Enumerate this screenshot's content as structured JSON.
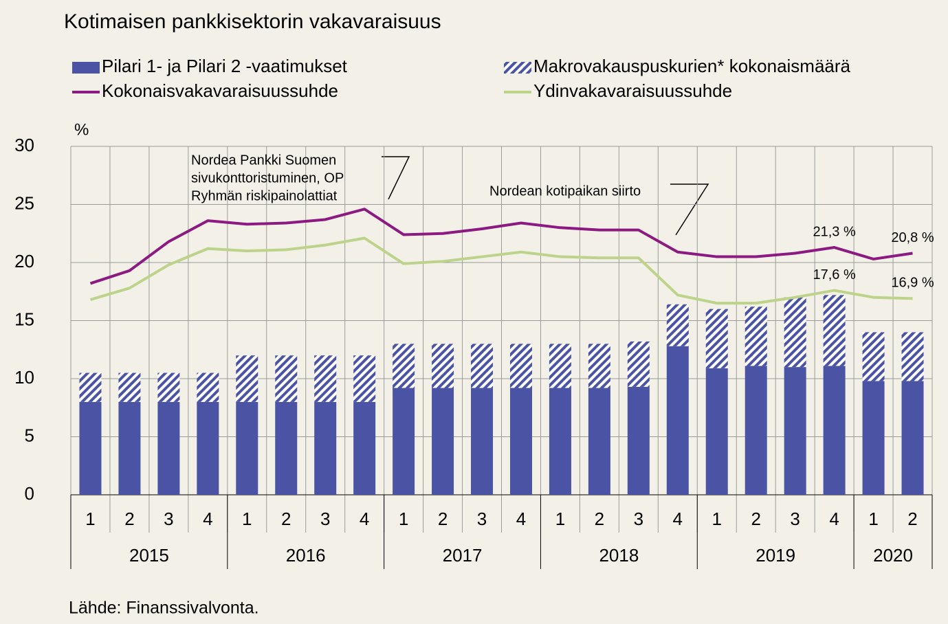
{
  "chart_data": {
    "type": "bar",
    "title": "Kotimaisen pankkisektorin vakavaraisuus",
    "y_unit": "%",
    "source": "Lähde:  Finanssivalvonta.",
    "categories": [
      "1",
      "2",
      "3",
      "4",
      "1",
      "2",
      "3",
      "4",
      "1",
      "2",
      "3",
      "4",
      "1",
      "2",
      "3",
      "4",
      "1",
      "2",
      "3",
      "4",
      "1",
      "2"
    ],
    "groups": [
      {
        "label": "2015",
        "size": 4
      },
      {
        "label": "2016",
        "size": 4
      },
      {
        "label": "2017",
        "size": 4
      },
      {
        "label": "2018",
        "size": 4
      },
      {
        "label": "2019",
        "size": 4
      },
      {
        "label": "2020",
        "size": 2
      }
    ],
    "series": [
      {
        "name": "Pilari 1- ja Pilari 2 -vaatimukset",
        "type": "bar",
        "color": "#4b53a5",
        "values": [
          8.0,
          8.0,
          8.0,
          8.0,
          8.0,
          8.0,
          8.0,
          8.0,
          9.2,
          9.2,
          9.2,
          9.2,
          9.2,
          9.2,
          9.3,
          12.8,
          10.9,
          11.1,
          11.0,
          11.1,
          9.8,
          9.8
        ]
      },
      {
        "name": "Makrovakauspuskurien* kokonaismäärä",
        "type": "bar",
        "pattern": "hatch",
        "color": "#4b53a5",
        "values": [
          2.5,
          2.5,
          2.5,
          2.5,
          4.0,
          4.0,
          4.0,
          4.0,
          3.8,
          3.8,
          3.8,
          3.8,
          3.8,
          3.8,
          3.9,
          3.6,
          5.1,
          5.1,
          6.0,
          6.1,
          4.2,
          4.2
        ]
      },
      {
        "name": "Kokonaisvakavaraisuussuhde",
        "type": "line",
        "color": "#8c1a80",
        "values": [
          18.2,
          19.3,
          21.8,
          23.6,
          23.3,
          23.4,
          23.7,
          24.6,
          22.4,
          22.5,
          22.9,
          23.4,
          23.0,
          22.8,
          22.8,
          20.9,
          20.5,
          20.5,
          20.8,
          21.3,
          20.3,
          20.8
        ],
        "value_labels": [
          null,
          null,
          null,
          null,
          null,
          null,
          null,
          null,
          null,
          null,
          null,
          null,
          null,
          null,
          null,
          null,
          null,
          null,
          null,
          "21,3 %",
          null,
          "20,8 %"
        ]
      },
      {
        "name": "Ydinvakavaraisuussuhde",
        "type": "line",
        "color": "#bdd38b",
        "values": [
          16.8,
          17.8,
          19.8,
          21.2,
          21.0,
          21.1,
          21.5,
          22.1,
          19.9,
          20.1,
          20.5,
          20.9,
          20.5,
          20.4,
          20.4,
          17.2,
          16.5,
          16.5,
          17.0,
          17.6,
          17.0,
          16.9
        ],
        "value_labels": [
          null,
          null,
          null,
          null,
          null,
          null,
          null,
          null,
          null,
          null,
          null,
          null,
          null,
          null,
          null,
          null,
          null,
          null,
          null,
          "17,6 %",
          null,
          "16,9 %"
        ]
      }
    ],
    "annotations": [
      {
        "lines": [
          "Nordea Pankki Suomen",
          "sivukonttoristuminen, OP",
          "Ryhmän riskipainolattiat"
        ]
      },
      {
        "lines": [
          "Nordean kotipaikan siirto"
        ]
      }
    ],
    "ylim": [
      0,
      30
    ],
    "yticks": [
      0,
      5,
      10,
      15,
      20,
      25,
      30
    ],
    "grid": true
  }
}
